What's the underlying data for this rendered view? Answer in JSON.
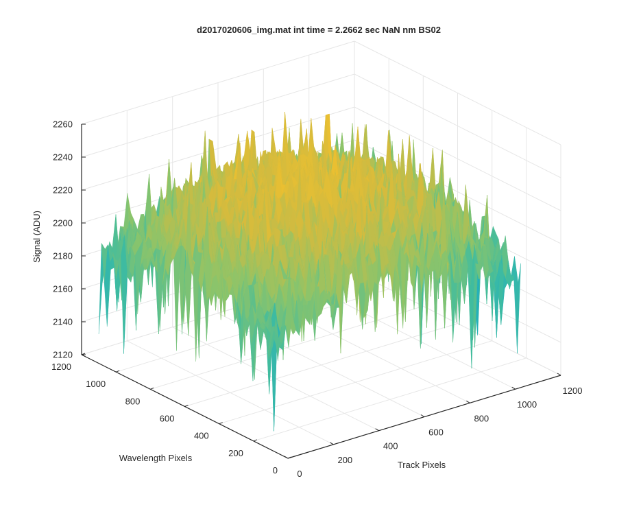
{
  "chart_data": {
    "type": "surface",
    "title": "d2017020606_img.mat int time = 2.2662 sec  NaN nm BS02",
    "xlabel": "Track Pixels",
    "ylabel": "Wavelength Pixels",
    "zlabel": "Signal (ADU)",
    "xlim": [
      0,
      1200
    ],
    "ylim": [
      0,
      1200
    ],
    "zlim": [
      2120,
      2260
    ],
    "x_ticks": [
      "0",
      "200",
      "400",
      "600",
      "800",
      "1000",
      "1200"
    ],
    "y_ticks": [
      "0",
      "200",
      "400",
      "600",
      "800",
      "1000",
      "1200"
    ],
    "z_ticks": [
      "2120",
      "2140",
      "2160",
      "2180",
      "2200",
      "2220",
      "2240",
      "2260"
    ],
    "grid": true,
    "colormap": "parula",
    "colors": [
      "#0b7fd6",
      "#17a9c9",
      "#3fbca0",
      "#8cc46a",
      "#d4bb3e",
      "#f2c12c"
    ],
    "surface_extent": {
      "x": [
        0,
        1100
      ],
      "y": [
        100,
        1100
      ]
    },
    "surface_summary": {
      "mean_signal_range": [
        2170,
        2230
      ],
      "typical_min": 2130,
      "typical_max": 2250
    }
  }
}
